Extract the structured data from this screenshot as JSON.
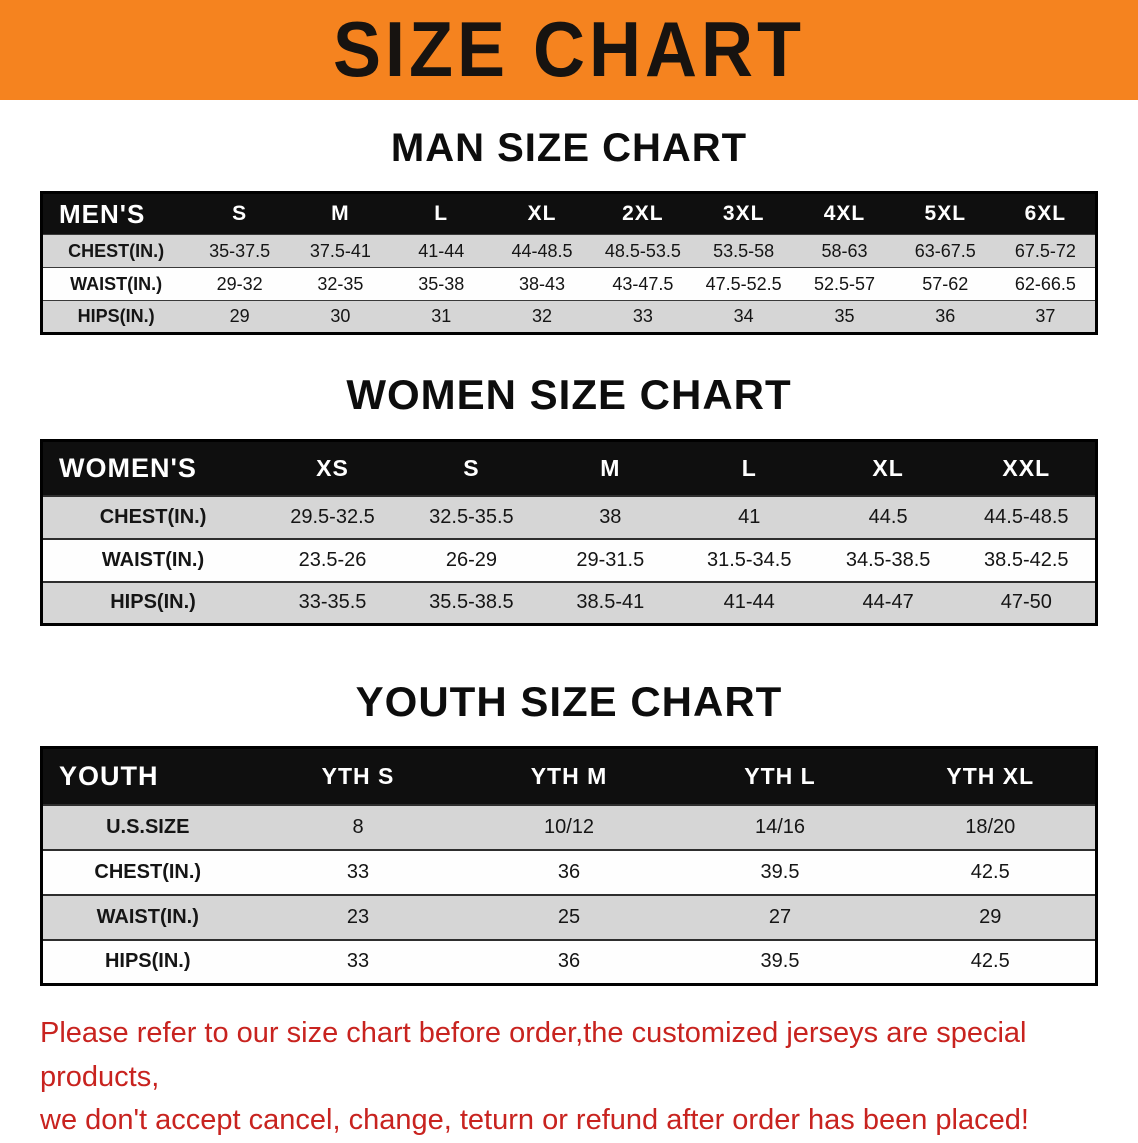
{
  "banner": {
    "title": "SIZE CHART"
  },
  "colors": {
    "banner_bg": "#F5831F",
    "banner_text": "#171310",
    "heading": "#0D0D0D",
    "header_bg": "#0F0F0F",
    "row_alt": "#D6D6D6",
    "table_border": "#000000",
    "disclaimer": "#C8231F"
  },
  "men": {
    "heading": "MAN SIZE CHART",
    "table": {
      "header": [
        "MEN'S",
        "S",
        "M",
        "L",
        "XL",
        "2XL",
        "3XL",
        "4XL",
        "5XL",
        "6XL"
      ],
      "rows": [
        [
          "CHEST(IN.)",
          "35-37.5",
          "37.5-41",
          "41-44",
          "44-48.5",
          "48.5-53.5",
          "53.5-58",
          "58-63",
          "63-67.5",
          "67.5-72"
        ],
        [
          "WAIST(IN.)",
          "29-32",
          "32-35",
          "35-38",
          "38-43",
          "43-47.5",
          "47.5-52.5",
          "52.5-57",
          "57-62",
          "62-66.5"
        ],
        [
          "HIPS(IN.)",
          "29",
          "30",
          "31",
          "32",
          "33",
          "34",
          "35",
          "36",
          "37"
        ]
      ]
    }
  },
  "women": {
    "heading": "WOMEN SIZE CHART",
    "table": {
      "header": [
        "WOMEN'S",
        "XS",
        "S",
        "M",
        "L",
        "XL",
        "XXL"
      ],
      "rows": [
        [
          "CHEST(IN.)",
          "29.5-32.5",
          "32.5-35.5",
          "38",
          "41",
          "44.5",
          "44.5-48.5"
        ],
        [
          "WAIST(IN.)",
          "23.5-26",
          "26-29",
          "29-31.5",
          "31.5-34.5",
          "34.5-38.5",
          "38.5-42.5"
        ],
        [
          "HIPS(IN.)",
          "33-35.5",
          "35.5-38.5",
          "38.5-41",
          "41-44",
          "44-47",
          "47-50"
        ]
      ]
    }
  },
  "youth": {
    "heading": "YOUTH SIZE CHART",
    "table": {
      "header": [
        "YOUTH",
        "YTH S",
        "YTH M",
        "YTH L",
        "YTH XL"
      ],
      "rows": [
        [
          "U.S.SIZE",
          "8",
          "10/12",
          "14/16",
          "18/20"
        ],
        [
          "CHEST(IN.)",
          "33",
          "36",
          "39.5",
          "42.5"
        ],
        [
          "WAIST(IN.)",
          "23",
          "25",
          "27",
          "29"
        ],
        [
          "HIPS(IN.)",
          "33",
          "36",
          "39.5",
          "42.5"
        ]
      ]
    }
  },
  "disclaimer": {
    "line1": "Please refer to our size chart before order,the customized jerseys are special products,",
    "line2": "we don't accept cancel, change, teturn or refund after order has been placed!"
  }
}
